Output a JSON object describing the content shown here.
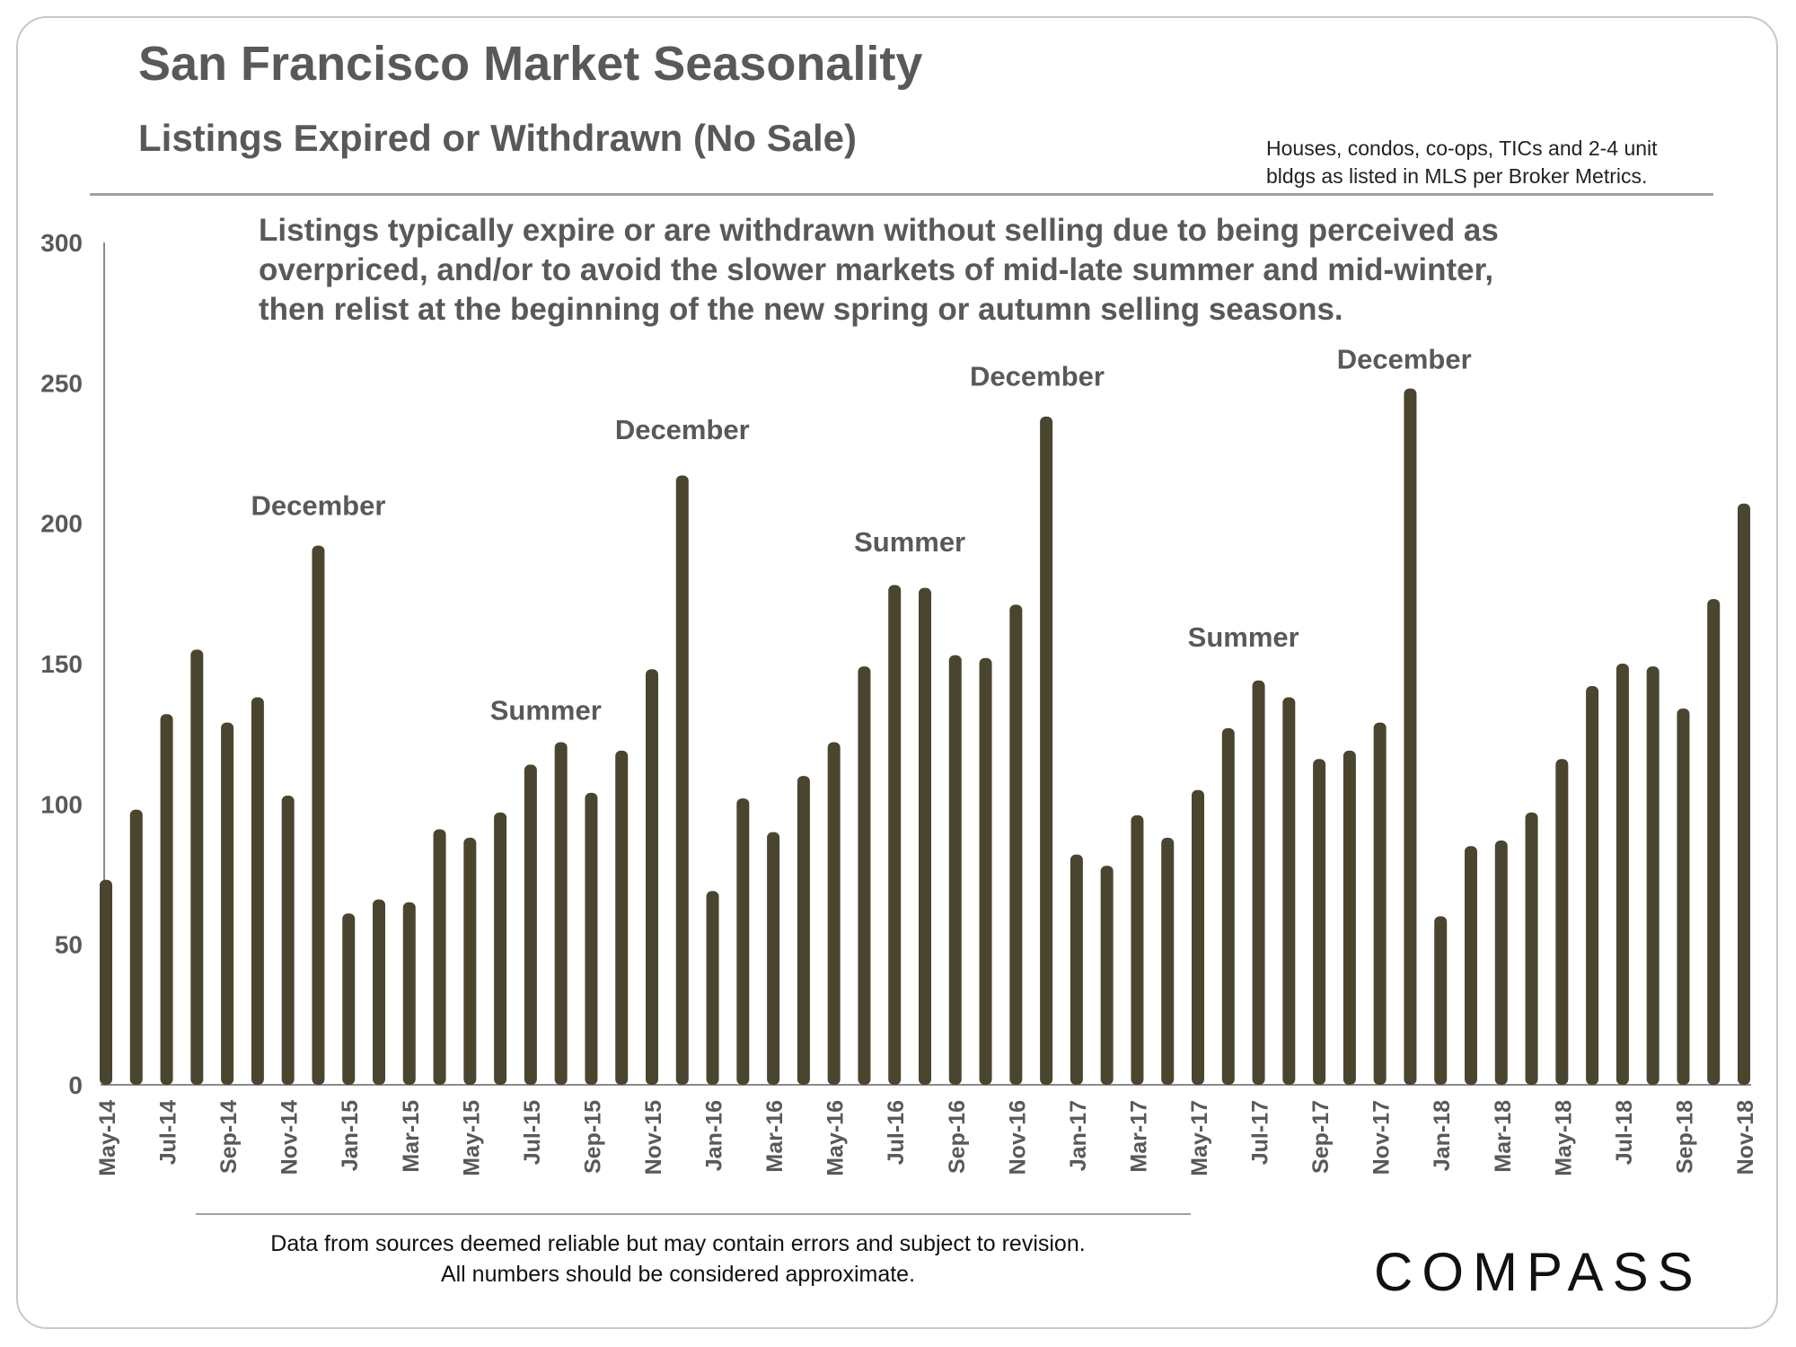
{
  "header": {
    "title": "San Francisco Market Seasonality",
    "subtitle": "Listings Expired or Withdrawn (No Sale)",
    "note_line1": "Houses, condos, co-ops, TICs and 2-4 unit",
    "note_line2": "bldgs as listed in MLS per Broker Metrics."
  },
  "annotation": {
    "line1": "Listings typically expire or are withdrawn without selling due to being perceived as",
    "line2": "overpriced, and/or to avoid the slower markets of mid-late summer and mid-winter,",
    "line3": "then relist at the beginning of the new spring or autumn selling seasons."
  },
  "footer": {
    "line1": "Data from sources deemed reliable but may contain errors and subject to revision.",
    "line2": "All numbers should be considered approximate."
  },
  "logo": {
    "text": "COMPASS"
  },
  "colors": {
    "bar": "#4a452e",
    "text": "#595959",
    "axis": "#595959"
  },
  "chart_data": {
    "type": "bar",
    "title": "Listings Expired or Withdrawn (No Sale)",
    "xlabel": "",
    "ylabel": "",
    "ylim": [
      0,
      300
    ],
    "yticks": [
      0,
      50,
      100,
      150,
      200,
      250,
      300
    ],
    "grid": false,
    "categories": [
      "May-14",
      "Jun-14",
      "Jul-14",
      "Aug-14",
      "Sep-14",
      "Oct-14",
      "Nov-14",
      "Dec-14",
      "Jan-15",
      "Feb-15",
      "Mar-15",
      "Apr-15",
      "May-15",
      "Jun-15",
      "Jul-15",
      "Aug-15",
      "Sep-15",
      "Oct-15",
      "Nov-15",
      "Dec-15",
      "Jan-16",
      "Feb-16",
      "Mar-16",
      "Apr-16",
      "May-16",
      "Jun-16",
      "Jul-16",
      "Aug-16",
      "Sep-16",
      "Oct-16",
      "Nov-16",
      "Dec-16",
      "Jan-17",
      "Feb-17",
      "Mar-17",
      "Apr-17",
      "May-17",
      "Jun-17",
      "Jul-17",
      "Aug-17",
      "Sep-17",
      "Oct-17",
      "Nov-17",
      "Dec-17",
      "Jan-18",
      "Feb-18",
      "Mar-18",
      "Apr-18",
      "May-18",
      "Jun-18",
      "Jul-18",
      "Aug-18",
      "Sep-18",
      "Oct-18",
      "Nov-18"
    ],
    "tick_labels": [
      "May-14",
      "Jul-14",
      "Sep-14",
      "Nov-14",
      "Jan-15",
      "Mar-15",
      "May-15",
      "Jul-15",
      "Sep-15",
      "Nov-15",
      "Jan-16",
      "Mar-16",
      "May-16",
      "Jul-16",
      "Sep-16",
      "Nov-16",
      "Jan-17",
      "Mar-17",
      "May-17",
      "Jul-17",
      "Sep-17",
      "Nov-17",
      "Jan-18",
      "Mar-18",
      "May-18",
      "Jul-18",
      "Sep-18",
      "Nov-18"
    ],
    "values": [
      73,
      98,
      132,
      155,
      129,
      138,
      103,
      192,
      61,
      66,
      65,
      91,
      88,
      97,
      114,
      122,
      104,
      119,
      148,
      217,
      69,
      102,
      90,
      110,
      122,
      149,
      178,
      177,
      153,
      152,
      171,
      238,
      82,
      78,
      96,
      88,
      105,
      127,
      144,
      138,
      116,
      119,
      129,
      248,
      60,
      85,
      87,
      97,
      116,
      142,
      150,
      149,
      134,
      173,
      207
    ],
    "labels": [
      {
        "text": "December",
        "index": 7,
        "value": 203
      },
      {
        "text": "Summer",
        "index": 14.5,
        "value": 130
      },
      {
        "text": "December",
        "index": 19,
        "value": 230
      },
      {
        "text": "Summer",
        "index": 26.5,
        "value": 190
      },
      {
        "text": "December",
        "index": 30.7,
        "value": 249
      },
      {
        "text": "Summer",
        "index": 37.5,
        "value": 156
      },
      {
        "text": "December",
        "index": 42.8,
        "value": 255
      }
    ]
  }
}
